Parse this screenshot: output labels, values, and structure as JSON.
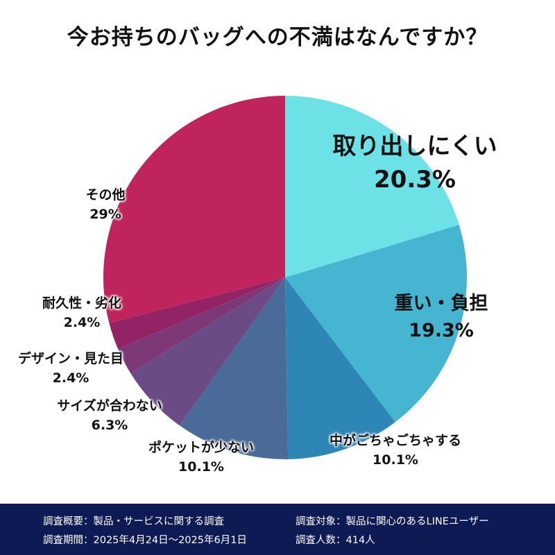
{
  "chart_data": {
    "type": "pie",
    "title": "今お持ちのバッグへの不満はなんですか？",
    "slices": [
      {
        "label": "取り出しにくい",
        "value": 20.3,
        "display": "20.3%",
        "color": "#6ce2e6"
      },
      {
        "label": "重い・負担",
        "value": 19.3,
        "display": "19.3%",
        "color": "#45b5d2"
      },
      {
        "label": "中がごちゃごちゃする",
        "value": 10.1,
        "display": "10.1%",
        "color": "#2e86b6"
      },
      {
        "label": "ポケットが少ない",
        "value": 10.1,
        "display": "10.1%",
        "color": "#4a6a98"
      },
      {
        "label": "サイズが合わない",
        "value": 6.3,
        "display": "6.3%",
        "color": "#6a4b85"
      },
      {
        "label": "デザイン・見た目",
        "value": 2.4,
        "display": "2.4%",
        "color": "#7c3877"
      },
      {
        "label": "耐久性・劣化",
        "value": 2.4,
        "display": "2.4%",
        "color": "#922466"
      },
      {
        "label": "その他",
        "value": 29,
        "display": "29%",
        "color": "#c0245c"
      }
    ],
    "start": "12 o'clock",
    "direction": "clockwise",
    "legend": "none (labels beside slices)"
  },
  "footer": {
    "survey_outline": "調査概要：製品・サービスに関する調査",
    "survey_period": "調査期間：2025年4月24日〜2025年6月1日",
    "survey_target": "調査対象：製品に関心のあるLINEユーザー",
    "survey_count": "調査人数：414人"
  }
}
